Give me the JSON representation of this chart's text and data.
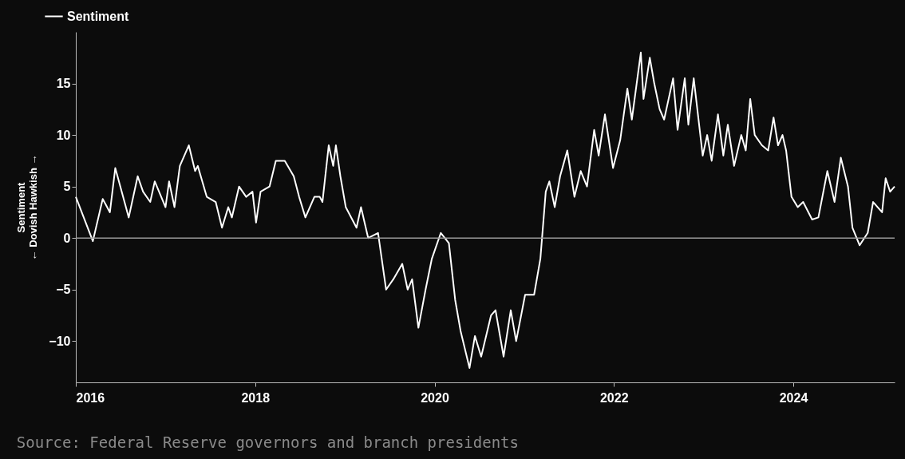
{
  "chart_data": {
    "type": "line",
    "ylabel": "Sentiment\n← Dovish    Hawkish →",
    "annotations": [
      "Source: Federal Reserve governors and branch presidents"
    ],
    "xlim": [
      2016,
      2025.13
    ],
    "xticks": [
      2016,
      2018,
      2020,
      2022,
      2024
    ],
    "ylim": [
      -14,
      20
    ],
    "yticks": [
      -10,
      -5,
      0,
      5,
      10,
      15
    ],
    "legend": "top left",
    "grid": false,
    "ref_lines": [
      {
        "axis": "y",
        "value": 0,
        "color": "#9a9a9a"
      }
    ],
    "series": [
      {
        "name": "Sentiment",
        "color": "#ffffff",
        "x": [
          2016.0,
          2016.19,
          2016.3,
          2016.38,
          2016.44,
          2016.59,
          2016.69,
          2016.75,
          2016.83,
          2016.88,
          2017.0,
          2017.04,
          2017.1,
          2017.16,
          2017.26,
          2017.33,
          2017.36,
          2017.46,
          2017.56,
          2017.63,
          2017.7,
          2017.74,
          2017.82,
          2017.9,
          2017.97,
          2018.01,
          2018.06,
          2018.16,
          2018.23,
          2018.33,
          2018.43,
          2018.49,
          2018.56,
          2018.66,
          2018.72,
          2018.75,
          2018.82,
          2018.87,
          2018.9,
          2018.95,
          2019.01,
          2019.13,
          2019.18,
          2019.26,
          2019.37,
          2019.46,
          2019.54,
          2019.64,
          2019.7,
          2019.75,
          2019.82,
          2019.9,
          2019.97,
          2020.07,
          2020.16,
          2020.23,
          2020.29,
          2020.39,
          2020.45,
          2020.52,
          2020.63,
          2020.68,
          2020.77,
          2020.85,
          2020.91,
          2021.01,
          2021.11,
          2021.18,
          2021.24,
          2021.28,
          2021.34,
          2021.4,
          2021.48,
          2021.56,
          2021.63,
          2021.7,
          2021.78,
          2021.83,
          2021.9,
          2021.99,
          2022.07,
          2022.15,
          2022.2,
          2022.3,
          2022.33,
          2022.4,
          2022.45,
          2022.51,
          2022.56,
          2022.66,
          2022.71,
          2022.79,
          2022.83,
          2022.89,
          2022.99,
          2023.04,
          2023.09,
          2023.16,
          2023.22,
          2023.27,
          2023.34,
          2023.42,
          2023.47,
          2023.52,
          2023.57,
          2023.65,
          2023.72,
          2023.78,
          2023.83,
          2023.88,
          2023.92,
          2023.98,
          2024.05,
          2024.11,
          2024.21,
          2024.28,
          2024.38,
          2024.46,
          2024.53,
          2024.61,
          2024.66,
          2024.74,
          2024.83,
          2024.89,
          2024.99,
          2025.03,
          2025.08,
          2025.13
        ],
        "values": [
          4,
          -0.3,
          3.8,
          2.5,
          6.8,
          2,
          6,
          4.5,
          3.5,
          5.5,
          3,
          5.5,
          3,
          7,
          9,
          6.5,
          7,
          4,
          3.5,
          1,
          3,
          2,
          5,
          4,
          4.5,
          1.5,
          4.5,
          5,
          7.5,
          7.5,
          6,
          4,
          2,
          4,
          4,
          3.5,
          9,
          7,
          9,
          6,
          3,
          1,
          3,
          0,
          0.5,
          -5,
          -4,
          -2.5,
          -5,
          -4,
          -8.7,
          -5,
          -2,
          0.5,
          -0.5,
          -6,
          -9,
          -12.6,
          -9.5,
          -11.5,
          -7.5,
          -7,
          -11.5,
          -7,
          -10,
          -5.5,
          -5.5,
          -2,
          4.5,
          5.5,
          3,
          6,
          8.5,
          4,
          6.5,
          5,
          10.5,
          8,
          12,
          6.8,
          9.5,
          14.5,
          11.5,
          18,
          13.5,
          17.5,
          15,
          12.5,
          11.5,
          15.5,
          10.5,
          15.5,
          11,
          15.5,
          8,
          10,
          7.5,
          12,
          8,
          11,
          7,
          10,
          8.5,
          13.5,
          10,
          9,
          8.5,
          11.7,
          9,
          10,
          8.5,
          4,
          3,
          3.5,
          1.8,
          2,
          6.5,
          3.5,
          7.8,
          5,
          1,
          -0.7,
          0.5,
          3.5,
          2.5,
          5.8,
          4.5,
          5
        ]
      }
    ]
  }
}
